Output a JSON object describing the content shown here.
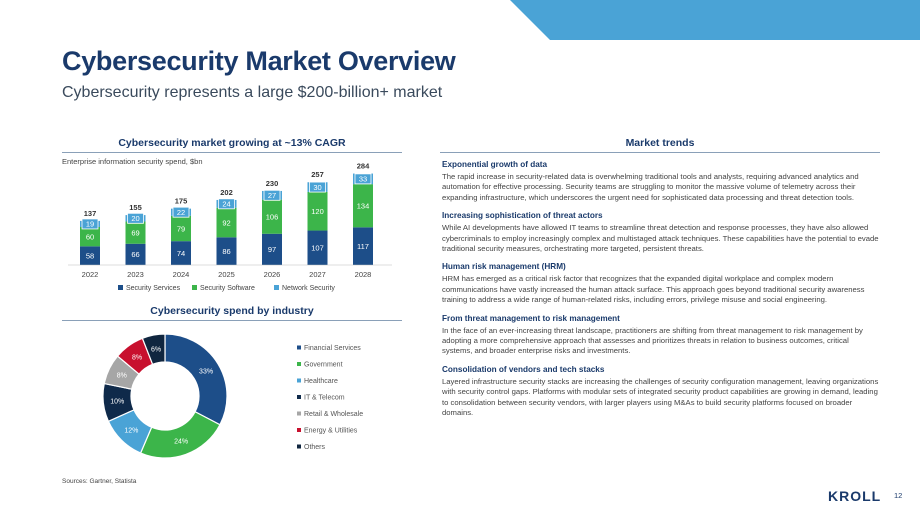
{
  "page": {
    "title": "Cybersecurity Market Overview",
    "subtitle": "Cybersecurity represents a large $200-billion+ market",
    "sources": "Sources: Gartner, Statista",
    "logo": "KROLL",
    "page_number": "12"
  },
  "colors": {
    "navy": "#1a3a6b",
    "security_services": "#1d4e89",
    "security_software": "#3cb54a",
    "network_security": "#4aa3d6",
    "accent_corner": "#4aa3d6"
  },
  "bar_section": {
    "header": "Cybersecurity market growing at ~13% CAGR",
    "note": "Enterprise information security spend, $bn"
  },
  "pie_section": {
    "header": "Cybersecurity spend by industry"
  },
  "chart_data": [
    {
      "type": "bar",
      "stacked": true,
      "categories": [
        "2022",
        "2023",
        "2024",
        "2025",
        "2026",
        "2027",
        "2028"
      ],
      "series": [
        {
          "name": "Security Services",
          "values": [
            58,
            66,
            74,
            86,
            97,
            107,
            117
          ],
          "color": "#1d4e89"
        },
        {
          "name": "Security Software",
          "values": [
            60,
            69,
            79,
            92,
            106,
            120,
            134
          ],
          "color": "#3cb54a"
        },
        {
          "name": "Network Security",
          "values": [
            19,
            20,
            22,
            24,
            27,
            30,
            33
          ],
          "color": "#4aa3d6"
        }
      ],
      "totals": [
        137,
        155,
        175,
        202,
        230,
        257,
        284
      ],
      "ylim": [
        0,
        300
      ],
      "legend_position": "bottom",
      "grid": false
    },
    {
      "type": "pie",
      "donut": true,
      "labels": [
        "Financial Services",
        "Government",
        "Healthcare",
        "IT & Telecom",
        "Retail & Wholesale",
        "Energy & Utilities",
        "Others"
      ],
      "values": [
        33,
        24,
        12,
        10,
        8,
        8,
        6
      ],
      "value_labels": [
        "33%",
        "24%",
        "12%",
        "10%",
        "8%",
        "8%",
        "6%"
      ],
      "colors": [
        "#1d4e89",
        "#3cb54a",
        "#4aa3d6",
        "#0f2a4a",
        "#a6a6a6",
        "#c8102e",
        "#10263f"
      ],
      "legend_position": "right"
    }
  ],
  "market_trends": {
    "header": "Market trends",
    "items": [
      {
        "heading": "Exponential growth of data",
        "body": "The rapid increase in security-related data is overwhelming traditional tools and analysts, requiring advanced analytics and automation for effective processing. Security teams are struggling to monitor the massive volume of telemetry across their expanding infrastructure, which underscores the urgent need for sophisticated data processing and threat detection tools."
      },
      {
        "heading": "Increasing sophistication of threat actors",
        "body": "While AI developments have allowed IT teams to streamline threat detection and response processes, they have also allowed cybercriminals to employ increasingly complex and multistaged attack techniques. These capabilities have the  potential to evade traditional security measures, orchestrating more targeted, persistent threats."
      },
      {
        "heading": "Human risk management (HRM)",
        "body": "HRM has emerged as a critical risk factor that recognizes that the expanded digital workplace and complex modern communications have vastly increased the human attack surface. This approach goes beyond traditional security awareness training to address a wide range of human-related risks, including errors, privilege misuse and social engineering."
      },
      {
        "heading": "From threat management to risk management",
        "body": "In the face of an ever-increasing threat landscape, practitioners are shifting from threat management to risk management by adopting a more comprehensive approach that assesses and prioritizes threats in relation to business outcomes, critical systems, and broader enterprise risks and investments."
      },
      {
        "heading": "Consolidation of vendors and tech stacks",
        "body": "Layered infrastructure security stacks are increasing the challenges of security configuration management, leaving organizations with security control gaps. Platforms with modular sets of integrated security product capabilities are growing in demand, leading to consolidation between security vendors, with larger players using M&As to build security platforms focused on broader domains."
      }
    ]
  }
}
